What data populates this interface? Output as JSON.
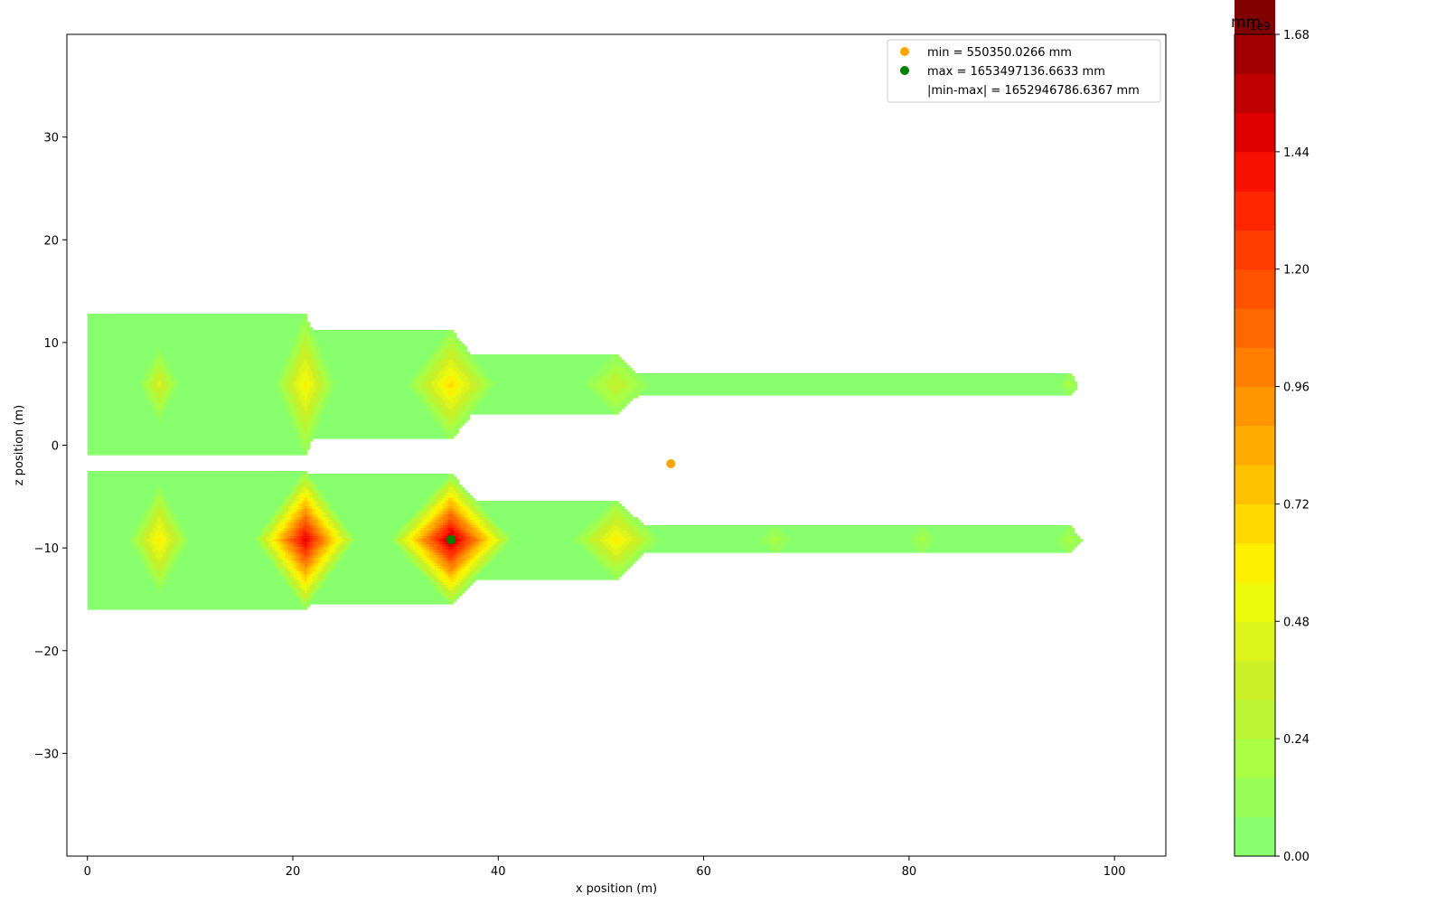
{
  "chart_data": {
    "type": "contour",
    "xlabel": "x position (m)",
    "ylabel": "z position (m)",
    "xlim": [
      -2,
      105
    ],
    "ylim": [
      -40,
      40
    ],
    "x_ticks": [
      0,
      20,
      40,
      60,
      80,
      100
    ],
    "y_ticks": [
      -30,
      -20,
      -10,
      0,
      10,
      20,
      30
    ],
    "x_tick_labels": [
      "0",
      "20",
      "40",
      "60",
      "80",
      "100"
    ],
    "y_tick_labels": [
      "−30",
      "−20",
      "−10",
      "0",
      "10",
      "20",
      "30"
    ],
    "domain": {
      "x": [
        0,
        103
      ],
      "z": [
        -16.5,
        16.5
      ]
    },
    "field_units": "mm",
    "colorbar": {
      "title": "mm",
      "exponent_label": "1e9",
      "range": [
        0,
        1.68
      ],
      "step": 0.08,
      "tick_values": [
        0,
        0.24,
        0.48,
        0.72,
        0.96,
        1.2,
        1.44,
        1.68
      ],
      "tick_labels": [
        "0.00",
        "0.24",
        "0.48",
        "0.72",
        "0.96",
        "1.20",
        "1.44",
        "1.68"
      ],
      "colors": [
        "#88ff6c",
        "#99ff58",
        "#aaff44",
        "#bbf534",
        "#ccf026",
        "#ddf51a",
        "#eefa0c",
        "#ffef00",
        "#ffd900",
        "#ffc200",
        "#ffab00",
        "#ff9500",
        "#ff7e00",
        "#ff6800",
        "#ff5200",
        "#ff3c00",
        "#ff2600",
        "#f70f00",
        "#de0000",
        "#c00000",
        "#a20000",
        "#800000"
      ]
    },
    "hotspots": [
      {
        "x": 7,
        "z": -9.2,
        "peak": 0.62,
        "rx": 3.3,
        "rz": 6.0
      },
      {
        "x": 21.2,
        "z": -9.2,
        "peak": 1.5,
        "rx": 5.2,
        "rz": 7.2
      },
      {
        "x": 35.4,
        "z": -9.2,
        "peak": 1.65,
        "rx": 6.2,
        "rz": 6.8
      },
      {
        "x": 51.5,
        "z": -9.2,
        "peak": 0.62,
        "rx": 4.8,
        "rz": 4.5
      },
      {
        "x": 67,
        "z": -9.2,
        "peak": 0.2,
        "rx": 2.5,
        "rz": 2.2
      },
      {
        "x": 81.3,
        "z": -9.2,
        "peak": 0.2,
        "rx": 2.0,
        "rz": 2.2
      },
      {
        "x": 95.6,
        "z": -9.2,
        "peak": 0.2,
        "rx": 2.1,
        "rz": 2.4
      },
      {
        "x": 7,
        "z": 5.9,
        "peak": 0.42,
        "rx": 2.3,
        "rz": 4.4
      },
      {
        "x": 21.2,
        "z": 5.9,
        "peak": 0.6,
        "rx": 3.3,
        "rz": 8.0
      },
      {
        "x": 35.4,
        "z": 5.9,
        "peak": 0.68,
        "rx": 4.8,
        "rz": 6.2
      },
      {
        "x": 51.5,
        "z": 5.9,
        "peak": 0.34,
        "rx": 4.1,
        "rz": 4.0
      },
      {
        "x": 95.6,
        "z": 5.9,
        "peak": 0.2,
        "rx": 1.5,
        "rz": 2.0
      }
    ],
    "markers": [
      {
        "name": "min",
        "x": 56.8,
        "z": -1.8,
        "color": "#ffa500"
      },
      {
        "name": "max",
        "x": 35.4,
        "z": -9.2,
        "color": "#008000"
      }
    ],
    "legend": {
      "position": "upper right",
      "entries": [
        {
          "text": "min = 550350.0266 mm",
          "color": "#ffa500"
        },
        {
          "text": "max = 1653497136.6633 mm",
          "color": "#008000"
        },
        {
          "text": "|min-max| = 1652946786.6367 mm",
          "color": ""
        }
      ]
    }
  }
}
